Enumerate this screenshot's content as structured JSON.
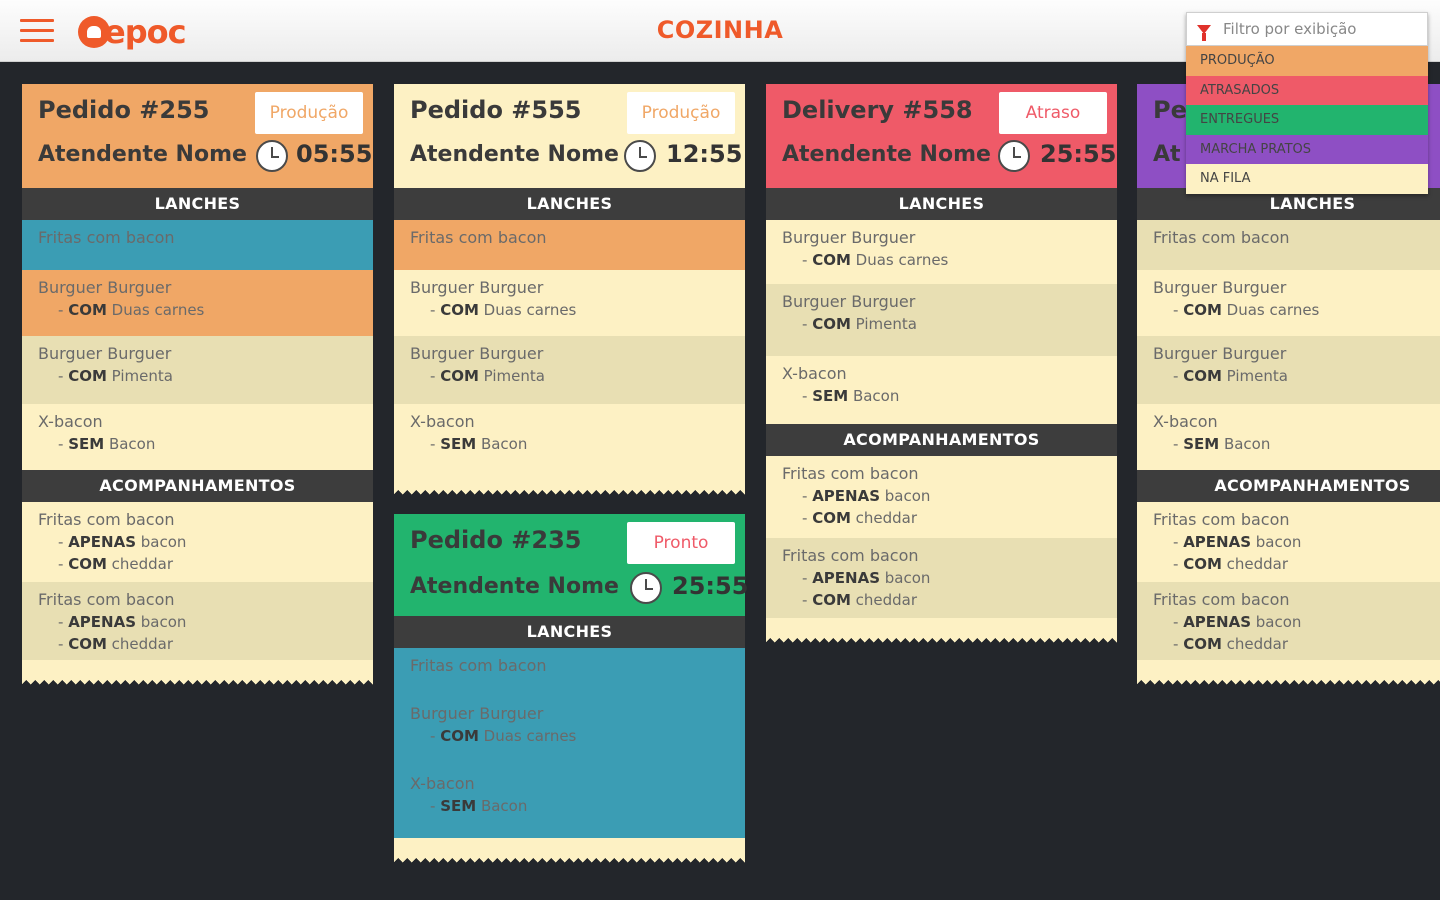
{
  "header": {
    "logo_text": "epoc",
    "title": "COZINHA"
  },
  "filter": {
    "placeholder": "Filtro por exibição",
    "options": [
      {
        "label": "PRODUÇÃO",
        "color": "#f0a766"
      },
      {
        "label": "ATRASADOS",
        "color": "#ef5a68"
      },
      {
        "label": "ENTREGUES",
        "color": "#22b46e"
      },
      {
        "label": "MARCHA PRATOS",
        "color": "#8e4fc4"
      },
      {
        "label": "NA FILA",
        "color": "#fdf1c4"
      }
    ]
  },
  "orders": [
    {
      "title": "Pedido #255",
      "attendant": "Atendente Nome",
      "time": "05:55",
      "status": "Produção",
      "status_color": "#f0a766",
      "header_color": "#f0a766",
      "lanches_label": "LANCHES",
      "lanches": [
        {
          "name": "Fritas com bacon",
          "mods": []
        },
        {
          "name": "Burguer Burguer",
          "mods": [
            {
              "kw": "COM",
              "text": "Duas carnes"
            }
          ]
        },
        {
          "name": "Burguer Burguer",
          "mods": [
            {
              "kw": "COM",
              "text": "Pimenta"
            }
          ]
        },
        {
          "name": "X-bacon",
          "mods": [
            {
              "kw": "SEM",
              "text": "Bacon"
            }
          ]
        }
      ],
      "acomp_label": "ACOMPANHAMENTOS",
      "acomp": [
        {
          "name": "Fritas com bacon",
          "mods": [
            {
              "kw": "APENAS",
              "text": "bacon"
            },
            {
              "kw": "COM",
              "text": "cheddar"
            }
          ]
        },
        {
          "name": "Fritas com bacon",
          "mods": [
            {
              "kw": "APENAS",
              "text": "bacon"
            },
            {
              "kw": "COM",
              "text": "cheddar"
            }
          ]
        }
      ]
    },
    {
      "title": "Pedido #555",
      "attendant": "Atendente Nome",
      "time": "12:55",
      "status": "Produção",
      "status_color": "#f0a766",
      "header_color": "#fdf1c4",
      "lanches_label": "LANCHES",
      "lanches": [
        {
          "name": "Fritas com bacon",
          "mods": []
        },
        {
          "name": "Burguer Burguer",
          "mods": [
            {
              "kw": "COM",
              "text": "Duas carnes"
            }
          ]
        },
        {
          "name": "Burguer Burguer",
          "mods": [
            {
              "kw": "COM",
              "text": "Pimenta"
            }
          ]
        },
        {
          "name": "X-bacon",
          "mods": [
            {
              "kw": "SEM",
              "text": "Bacon"
            }
          ]
        }
      ]
    },
    {
      "title": "Pedido #235",
      "attendant": "Atendente Nome",
      "time": "25:55",
      "status": "Pronto",
      "status_color": "#ef5a68",
      "header_color": "#22b46e",
      "lanches_label": "LANCHES",
      "lanches": [
        {
          "name": "Fritas com bacon",
          "mods": []
        },
        {
          "name": "Burguer Burguer",
          "mods": [
            {
              "kw": "COM",
              "text": "Duas carnes"
            }
          ]
        },
        {
          "name": "X-bacon",
          "mods": [
            {
              "kw": "SEM",
              "text": "Bacon"
            }
          ]
        }
      ]
    },
    {
      "title": "Delivery #558",
      "attendant": "Atendente Nome",
      "time": "25:55",
      "status": "Atraso",
      "status_color": "#ef5a68",
      "header_color": "#ef5a68",
      "lanches_label": "LANCHES",
      "lanches": [
        {
          "name": "Burguer Burguer",
          "mods": [
            {
              "kw": "COM",
              "text": "Duas carnes"
            }
          ]
        },
        {
          "name": "Burguer Burguer",
          "mods": [
            {
              "kw": "COM",
              "text": "Pimenta"
            }
          ]
        },
        {
          "name": "X-bacon",
          "mods": [
            {
              "kw": "SEM",
              "text": "Bacon"
            }
          ]
        }
      ],
      "acomp_label": "ACOMPANHAMENTOS",
      "acomp": [
        {
          "name": "Fritas com bacon",
          "mods": [
            {
              "kw": "APENAS",
              "text": "bacon"
            },
            {
              "kw": "COM",
              "text": "cheddar"
            }
          ]
        },
        {
          "name": "Fritas com bacon",
          "mods": [
            {
              "kw": "APENAS",
              "text": "bacon"
            },
            {
              "kw": "COM",
              "text": "cheddar"
            }
          ]
        }
      ]
    },
    {
      "title": "Pe",
      "attendant": "At",
      "header_color": "#8e4fc4",
      "lanches_label": "LANCHES",
      "lanches": [
        {
          "name": "Fritas com bacon",
          "mods": []
        },
        {
          "name": "Burguer Burguer",
          "mods": [
            {
              "kw": "COM",
              "text": "Duas carnes"
            }
          ]
        },
        {
          "name": "Burguer Burguer",
          "mods": [
            {
              "kw": "COM",
              "text": "Pimenta"
            }
          ]
        },
        {
          "name": "X-bacon",
          "mods": [
            {
              "kw": "SEM",
              "text": "Bacon"
            }
          ]
        }
      ],
      "acomp_label": "ACOMPANHAMENTOS",
      "acomp": [
        {
          "name": "Fritas com bacon",
          "mods": [
            {
              "kw": "APENAS",
              "text": "bacon"
            },
            {
              "kw": "COM",
              "text": "cheddar"
            }
          ]
        },
        {
          "name": "Fritas com bacon",
          "mods": [
            {
              "kw": "APENAS",
              "text": "bacon"
            },
            {
              "kw": "COM",
              "text": "cheddar"
            }
          ]
        }
      ]
    }
  ]
}
